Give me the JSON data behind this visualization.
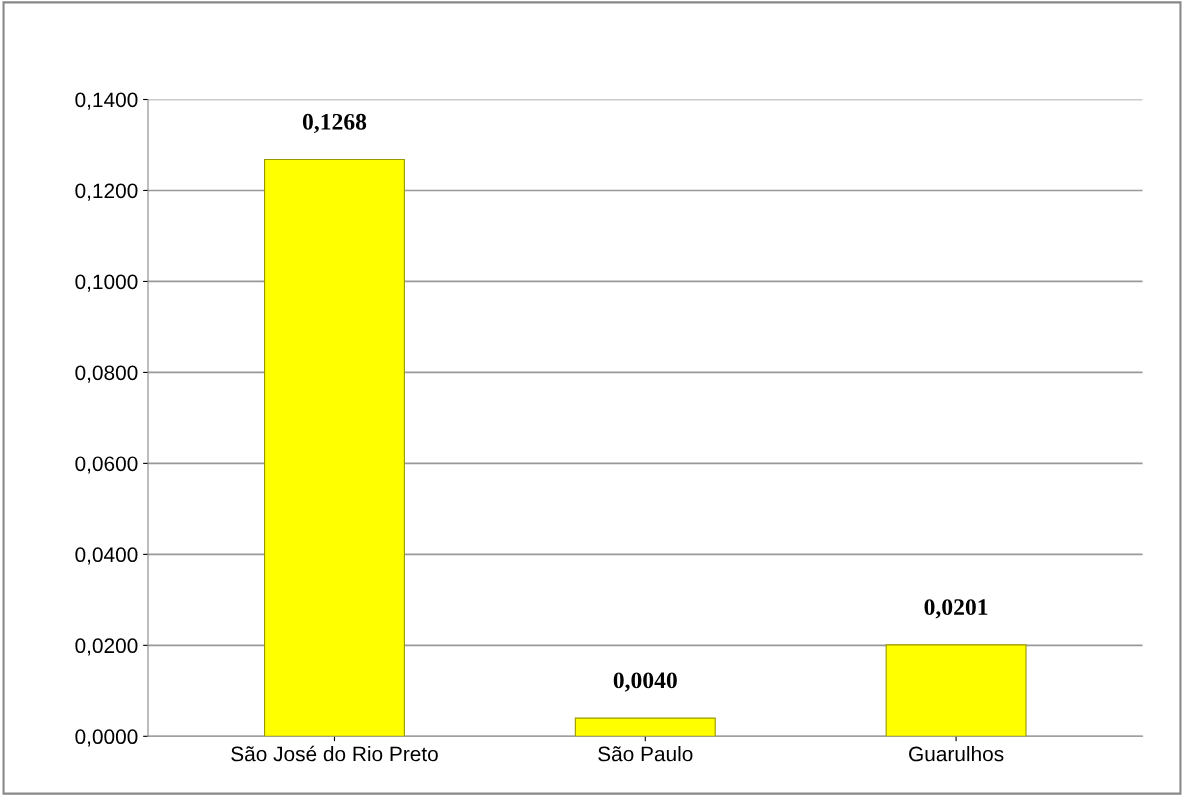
{
  "chart_data": {
    "type": "bar",
    "categories": [
      "São José do Rio Preto",
      "São Paulo",
      "Guarulhos"
    ],
    "values": [
      0.1268,
      0.004,
      0.0201
    ],
    "value_labels": [
      "0,1268",
      "0,0040",
      "0,0201"
    ],
    "color": "#ffff00",
    "ylim": [
      0,
      0.14
    ],
    "yticks": [
      {
        "value": 0,
        "label": "0,0000"
      },
      {
        "value": 0.02,
        "label": "0,0200"
      },
      {
        "value": 0.04,
        "label": "0,0400"
      },
      {
        "value": 0.06,
        "label": "0,0600"
      },
      {
        "value": 0.08,
        "label": "0,0800"
      },
      {
        "value": 0.1,
        "label": "0,1000"
      },
      {
        "value": 0.12,
        "label": "0,1200"
      },
      {
        "value": 0.14,
        "label": "0,1400"
      }
    ],
    "grid": "y"
  }
}
